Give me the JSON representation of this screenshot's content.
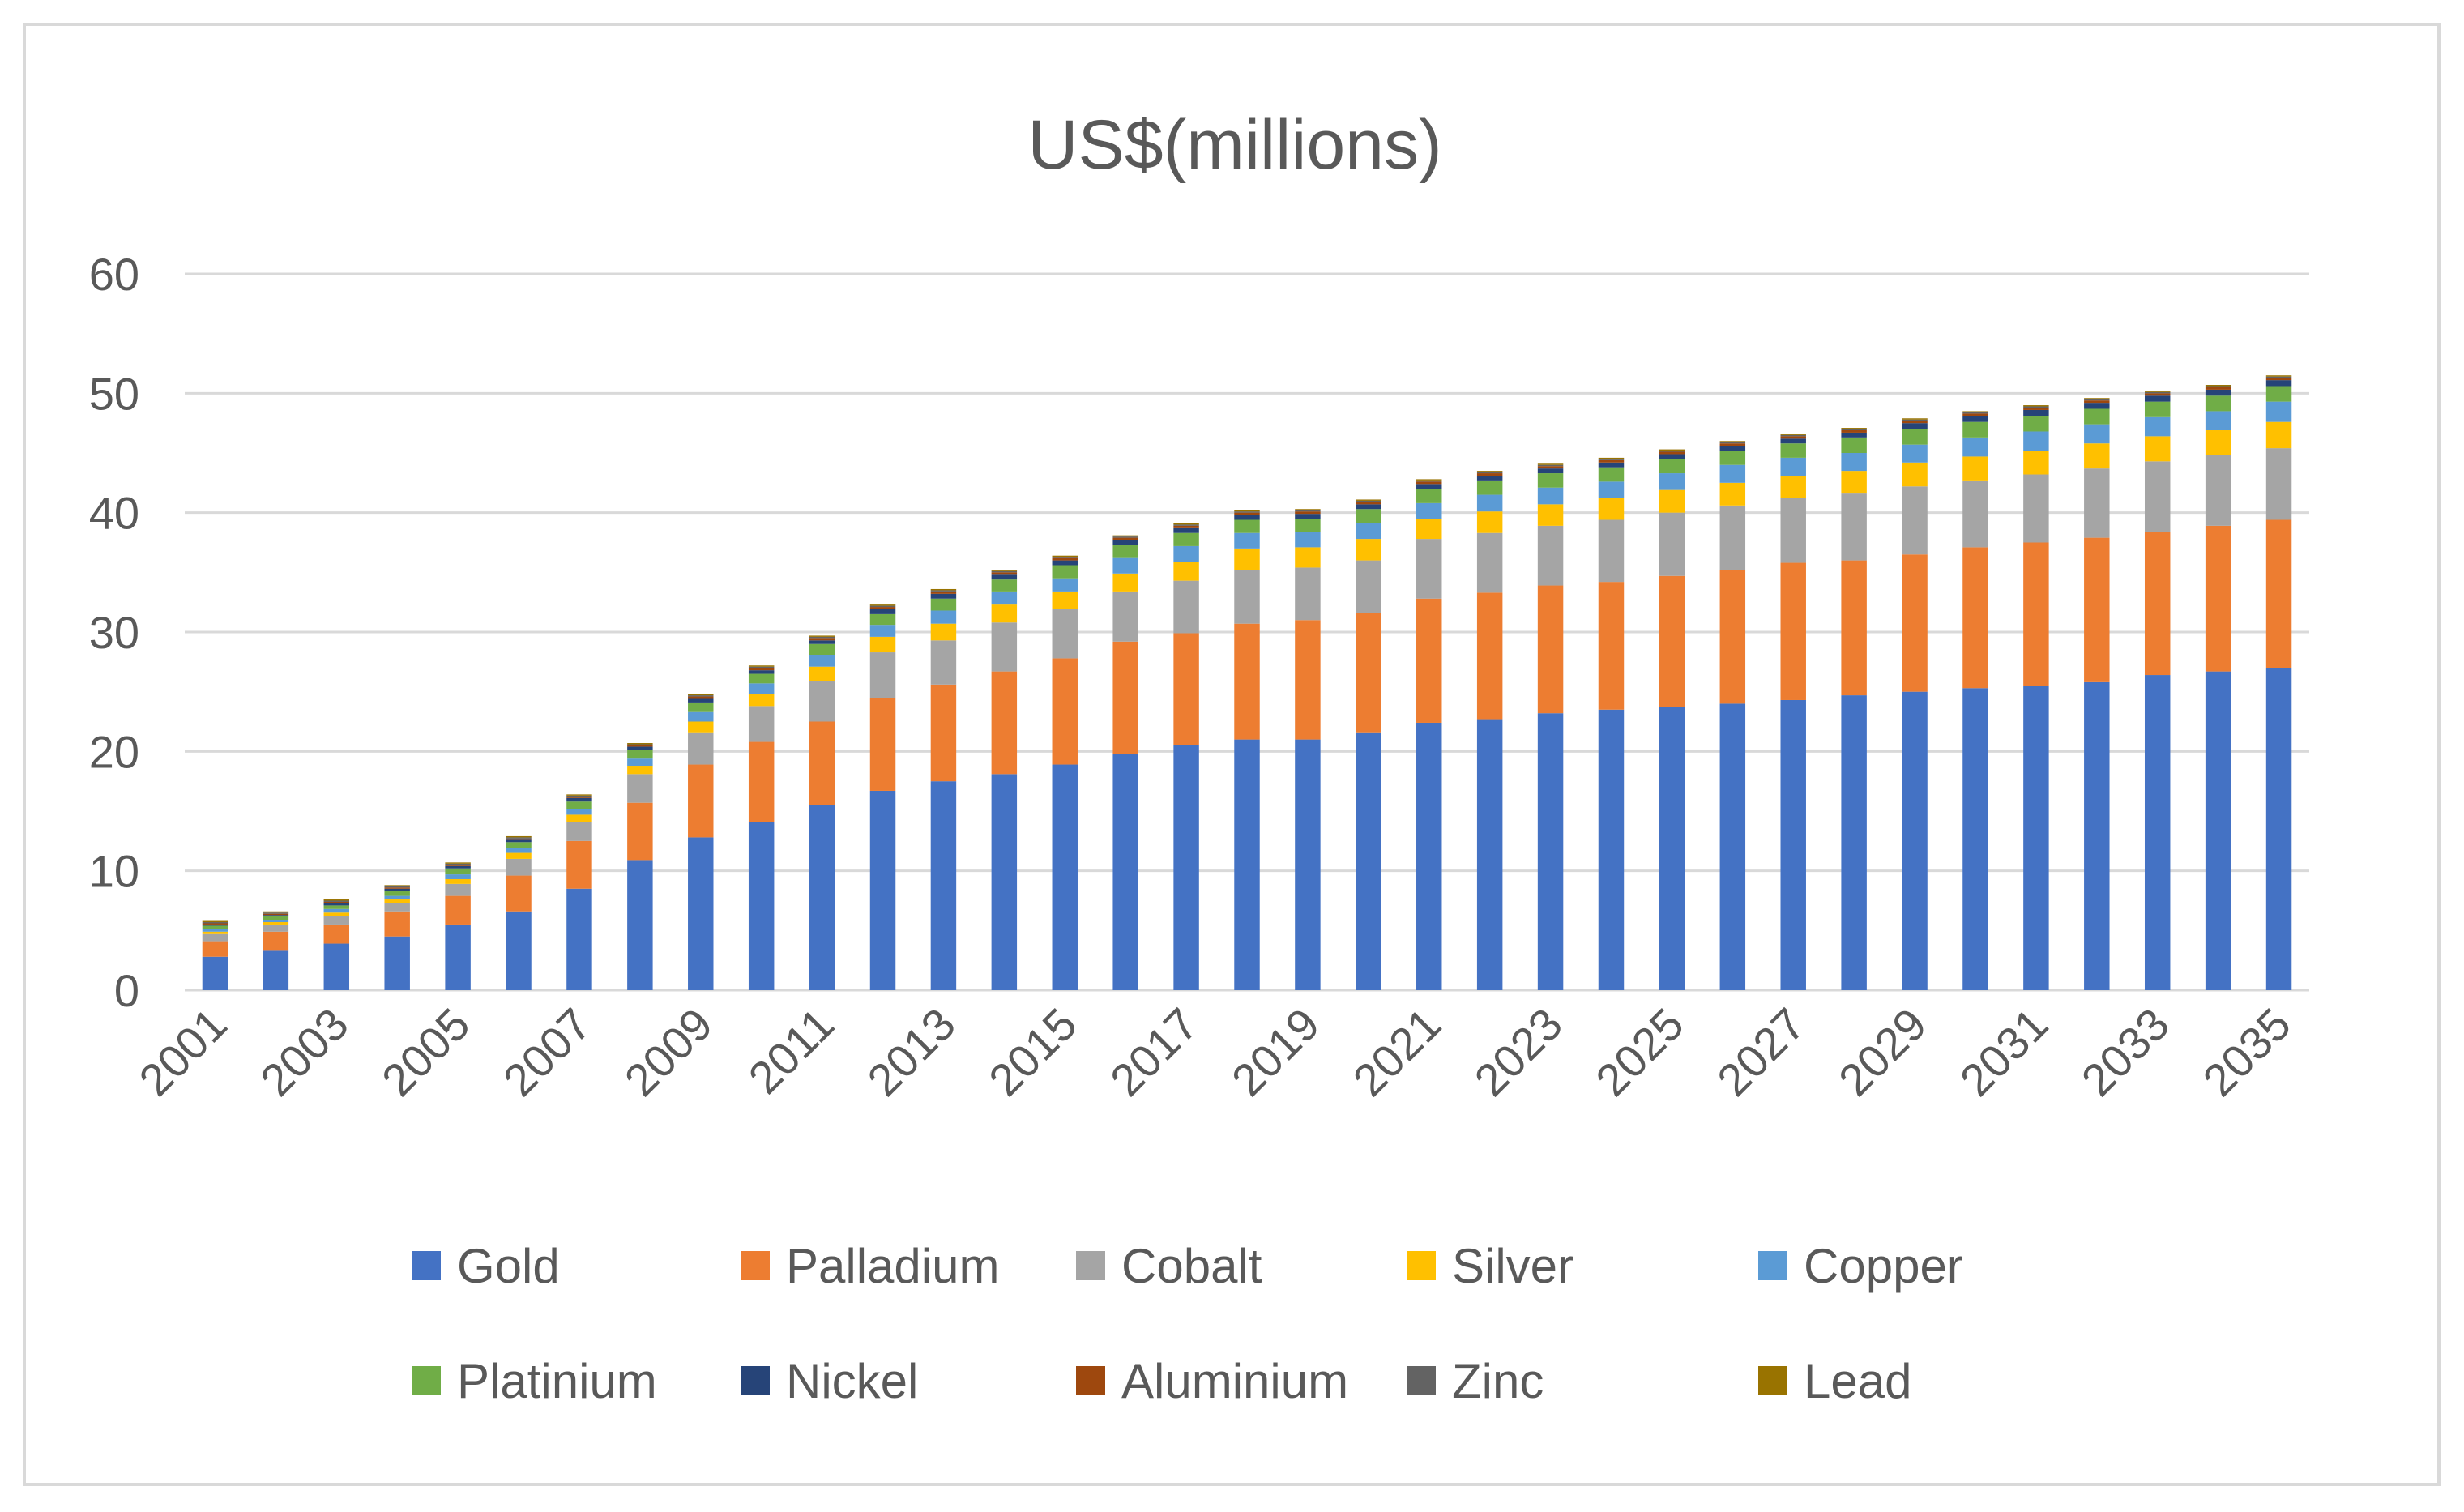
{
  "chart_data": {
    "type": "bar",
    "stacked": true,
    "title": "US$(millions)",
    "xlabel": "",
    "ylabel": "",
    "ylim": [
      0,
      60
    ],
    "yticks": [
      0,
      10,
      20,
      30,
      40,
      50,
      60
    ],
    "grid": true,
    "legend_position": "bottom",
    "categories": [
      "2001",
      "2002",
      "2003",
      "2004",
      "2005",
      "2006",
      "2007",
      "2008",
      "2009",
      "2010",
      "2011",
      "2012",
      "2013",
      "2014",
      "2015",
      "2016",
      "2017",
      "2018",
      "2019",
      "2020",
      "2021",
      "2022",
      "2023",
      "2024",
      "2025",
      "2026",
      "2027",
      "2028",
      "2029",
      "2030",
      "2031",
      "2032",
      "2033",
      "2034",
      "2035"
    ],
    "xtick_labels": [
      "2001",
      "2003",
      "2005",
      "2007",
      "2009",
      "2011",
      "2013",
      "2015",
      "2017",
      "2019",
      "2021",
      "2023",
      "2025",
      "2027",
      "2029",
      "2031",
      "2033",
      "2035"
    ],
    "series": [
      {
        "name": "Gold",
        "color": "#4472C4",
        "values": [
          2.8,
          3.3,
          3.9,
          4.5,
          5.5,
          6.6,
          8.5,
          10.9,
          12.8,
          14.1,
          15.5,
          16.7,
          17.5,
          18.1,
          18.9,
          19.8,
          20.5,
          21.0,
          21.0,
          21.6,
          22.4,
          22.7,
          23.2,
          23.5,
          23.7,
          24.0,
          24.3,
          24.7,
          25.0,
          25.3,
          25.5,
          25.8,
          26.4,
          26.7,
          27.0
        ]
      },
      {
        "name": "Palladium",
        "color": "#ED7D31",
        "values": [
          1.3,
          1.6,
          1.6,
          2.1,
          2.4,
          3.0,
          4.0,
          4.8,
          6.1,
          6.7,
          7.0,
          7.8,
          8.1,
          8.6,
          8.9,
          9.4,
          9.4,
          9.7,
          10.0,
          10.0,
          10.4,
          10.6,
          10.7,
          10.7,
          11.0,
          11.2,
          11.5,
          11.3,
          11.5,
          11.8,
          12.0,
          12.1,
          12.0,
          12.2,
          12.4
        ]
      },
      {
        "name": "Cobalt",
        "color": "#A5A5A5",
        "values": [
          0.6,
          0.6,
          0.7,
          0.7,
          1.0,
          1.4,
          1.6,
          2.4,
          2.7,
          3.0,
          3.4,
          3.8,
          3.7,
          4.1,
          4.1,
          4.2,
          4.4,
          4.5,
          4.4,
          4.4,
          5.0,
          5.0,
          5.0,
          5.2,
          5.3,
          5.4,
          5.4,
          5.6,
          5.7,
          5.6,
          5.7,
          5.8,
          5.9,
          5.9,
          6.0
        ]
      },
      {
        "name": "Silver",
        "color": "#FFC000",
        "values": [
          0.2,
          0.2,
          0.3,
          0.3,
          0.4,
          0.5,
          0.6,
          0.7,
          0.9,
          1.0,
          1.2,
          1.3,
          1.4,
          1.5,
          1.5,
          1.5,
          1.6,
          1.8,
          1.7,
          1.8,
          1.7,
          1.8,
          1.8,
          1.8,
          1.9,
          1.9,
          1.9,
          1.9,
          2.0,
          2.0,
          2.0,
          2.1,
          2.1,
          2.1,
          2.2
        ]
      },
      {
        "name": "Copper",
        "color": "#5B9BD5",
        "values": [
          0.2,
          0.2,
          0.3,
          0.3,
          0.4,
          0.4,
          0.5,
          0.6,
          0.8,
          0.9,
          1.0,
          1.0,
          1.1,
          1.1,
          1.1,
          1.3,
          1.3,
          1.3,
          1.3,
          1.3,
          1.3,
          1.4,
          1.4,
          1.4,
          1.4,
          1.5,
          1.5,
          1.5,
          1.5,
          1.6,
          1.6,
          1.6,
          1.6,
          1.6,
          1.7
        ]
      },
      {
        "name": "Platinium",
        "color": "#70AD47",
        "values": [
          0.3,
          0.3,
          0.3,
          0.4,
          0.5,
          0.5,
          0.6,
          0.7,
          0.8,
          0.8,
          0.9,
          0.9,
          1.0,
          1.0,
          1.1,
          1.1,
          1.1,
          1.1,
          1.1,
          1.2,
          1.2,
          1.2,
          1.2,
          1.2,
          1.2,
          1.2,
          1.2,
          1.3,
          1.3,
          1.3,
          1.3,
          1.3,
          1.3,
          1.3,
          1.3
        ]
      },
      {
        "name": "Nickel",
        "color": "#264478",
        "values": [
          0.1,
          0.1,
          0.2,
          0.2,
          0.2,
          0.2,
          0.3,
          0.3,
          0.3,
          0.3,
          0.3,
          0.4,
          0.4,
          0.4,
          0.4,
          0.4,
          0.4,
          0.4,
          0.4,
          0.4,
          0.4,
          0.4,
          0.4,
          0.4,
          0.4,
          0.4,
          0.4,
          0.4,
          0.5,
          0.5,
          0.5,
          0.5,
          0.5,
          0.5,
          0.5
        ]
      },
      {
        "name": "Aluminium",
        "color": "#9E480E",
        "values": [
          0.1,
          0.1,
          0.1,
          0.1,
          0.1,
          0.1,
          0.1,
          0.1,
          0.2,
          0.2,
          0.2,
          0.2,
          0.2,
          0.2,
          0.2,
          0.2,
          0.2,
          0.2,
          0.2,
          0.2,
          0.2,
          0.2,
          0.2,
          0.2,
          0.2,
          0.2,
          0.2,
          0.2,
          0.2,
          0.2,
          0.2,
          0.2,
          0.2,
          0.2,
          0.2
        ]
      },
      {
        "name": "Zinc",
        "color": "#636363",
        "values": [
          0.1,
          0.1,
          0.1,
          0.1,
          0.1,
          0.1,
          0.1,
          0.1,
          0.1,
          0.1,
          0.1,
          0.1,
          0.1,
          0.1,
          0.1,
          0.1,
          0.1,
          0.1,
          0.1,
          0.1,
          0.1,
          0.1,
          0.1,
          0.1,
          0.1,
          0.1,
          0.1,
          0.1,
          0.1,
          0.1,
          0.1,
          0.1,
          0.1,
          0.1,
          0.1
        ]
      },
      {
        "name": "Lead",
        "color": "#997300",
        "values": [
          0.1,
          0.1,
          0.1,
          0.1,
          0.1,
          0.1,
          0.1,
          0.1,
          0.1,
          0.1,
          0.1,
          0.1,
          0.1,
          0.1,
          0.1,
          0.1,
          0.1,
          0.1,
          0.1,
          0.1,
          0.1,
          0.1,
          0.1,
          0.1,
          0.1,
          0.1,
          0.1,
          0.1,
          0.1,
          0.1,
          0.1,
          0.1,
          0.1,
          0.1,
          0.1
        ]
      }
    ]
  }
}
